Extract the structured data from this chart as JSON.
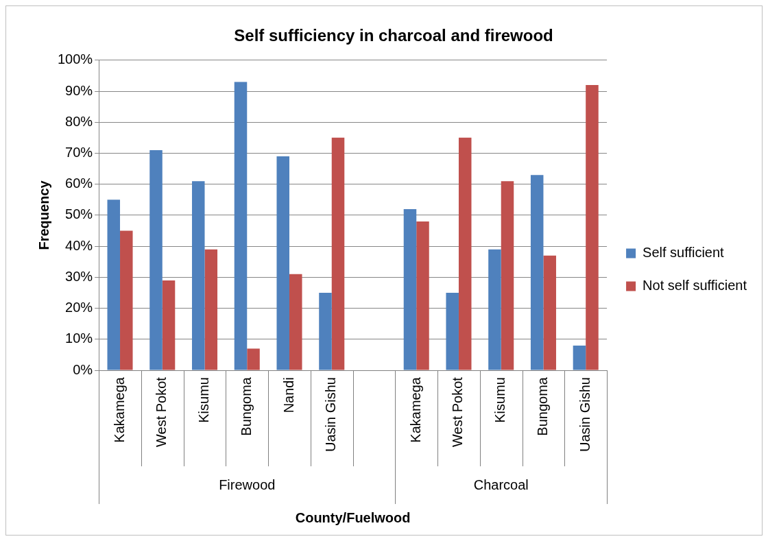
{
  "chart_data": {
    "type": "bar",
    "title": "Self sufficiency in charcoal and firewood",
    "xlabel": "County/Fuelwood",
    "ylabel": "Frequency",
    "categories": [
      "Kakamega",
      "West Pokot",
      "Kisumu",
      "Bungoma",
      "Nandi",
      "Uasin Gishu",
      null,
      "Kakamega",
      "West Pokot",
      "Kisumu",
      "Bungoma",
      "Uasin Gishu"
    ],
    "series": [
      {
        "name": "Self sufficient",
        "color": "#4f81bd",
        "values": [
          55,
          71,
          61,
          93,
          69,
          25,
          null,
          52,
          25,
          39,
          63,
          8
        ]
      },
      {
        "name": "Not self sufficient",
        "color": "#c0504d",
        "values": [
          45,
          29,
          39,
          7,
          31,
          75,
          null,
          48,
          75,
          61,
          37,
          92
        ]
      }
    ],
    "annotations": [
      "Firewood",
      "Charcoal"
    ],
    "ylim": [
      0,
      100
    ],
    "yticks": [
      {
        "value": 0,
        "label": "0%"
      },
      {
        "value": 10,
        "label": "10%"
      },
      {
        "value": 20,
        "label": "20%"
      },
      {
        "value": 30,
        "label": "30%"
      },
      {
        "value": 40,
        "label": "40%"
      },
      {
        "value": 50,
        "label": "50%"
      },
      {
        "value": 60,
        "label": "60%"
      },
      {
        "value": 70,
        "label": "70%"
      },
      {
        "value": 80,
        "label": "80%"
      },
      {
        "value": 90,
        "label": "90%"
      },
      {
        "value": 100,
        "label": "100%"
      }
    ],
    "grid": "y",
    "legend": "right"
  }
}
